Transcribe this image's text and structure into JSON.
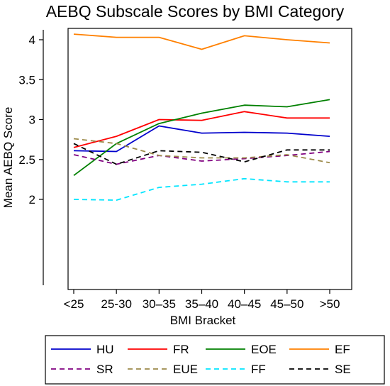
{
  "chart_data": {
    "type": "line",
    "title": "AEBQ Subscale Scores by BMI Category",
    "xlabel": "BMI Bracket",
    "ylabel": "Mean AEBQ Score",
    "categories": [
      "<25",
      "25-30",
      "30–35",
      "35–40",
      "40–45",
      "45–50",
      ">50"
    ],
    "yticks": [
      "2",
      "2.5",
      "3",
      "3.5",
      "4"
    ],
    "ylim": [
      1.2,
      4.2
    ],
    "grid": false,
    "legend_position": "bottom",
    "series": [
      {
        "name": "HU",
        "color": "#0000cc",
        "dash": "solid",
        "values": [
          2.61,
          2.6,
          2.92,
          2.83,
          2.84,
          2.83,
          2.79
        ]
      },
      {
        "name": "FR",
        "color": "#ff0000",
        "dash": "solid",
        "values": [
          2.65,
          2.79,
          3.0,
          2.99,
          3.1,
          3.02,
          3.02
        ]
      },
      {
        "name": "EOE",
        "color": "#008000",
        "dash": "solid",
        "values": [
          2.3,
          2.7,
          2.95,
          3.08,
          3.18,
          3.16,
          3.25
        ]
      },
      {
        "name": "EF",
        "color": "#ff8000",
        "dash": "solid",
        "values": [
          4.07,
          4.03,
          4.03,
          3.88,
          4.05,
          4.0,
          3.96
        ]
      },
      {
        "name": "SR",
        "color": "#800080",
        "dash": "dashed",
        "values": [
          2.56,
          2.44,
          2.55,
          2.48,
          2.51,
          2.55,
          2.6
        ]
      },
      {
        "name": "EUE",
        "color": "#9c8a4a",
        "dash": "dashed",
        "values": [
          2.76,
          2.7,
          2.55,
          2.52,
          2.52,
          2.56,
          2.46
        ]
      },
      {
        "name": "FF",
        "color": "#00e5ff",
        "dash": "dashed",
        "values": [
          2.0,
          1.99,
          2.15,
          2.19,
          2.26,
          2.22,
          2.22
        ]
      },
      {
        "name": "SE",
        "color": "#000000",
        "dash": "dashed",
        "values": [
          2.7,
          2.44,
          2.61,
          2.59,
          2.47,
          2.62,
          2.62
        ]
      }
    ]
  }
}
